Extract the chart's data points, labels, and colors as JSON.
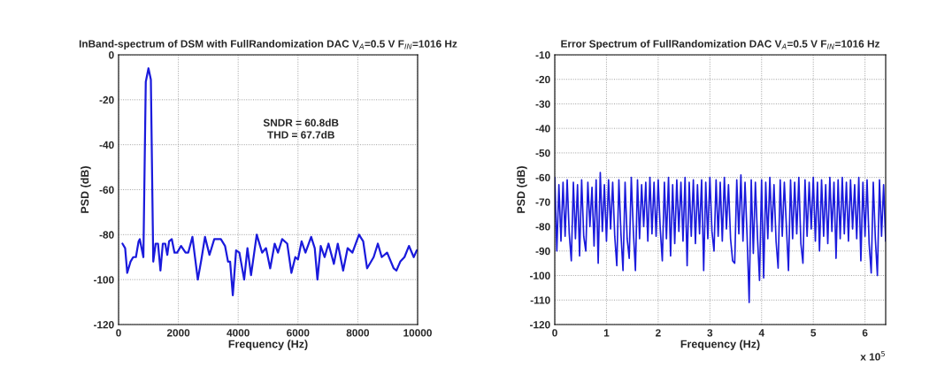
{
  "chart_data": [
    {
      "type": "line",
      "title": "InBand-spectrum of DSM with FullRandomization DAC V$_{A}$=0.5 V F$_{IN}$=1016 Hz",
      "xlabel": "Frequency (Hz)",
      "ylabel": "PSD (dB)",
      "xlim": [
        0,
        10000
      ],
      "xticks": [
        0,
        2000,
        4000,
        6000,
        8000,
        10000
      ],
      "ylim": [
        -120,
        0
      ],
      "yticks": [
        -120,
        -100,
        -80,
        -60,
        -40,
        -20,
        0
      ],
      "grid": true,
      "line_style": "solid",
      "annotations": [
        "SNDR = 60.8dB",
        "THD = 67.7dB"
      ],
      "series": [
        {
          "color": "#1a1adc",
          "x": [
            130,
            220,
            290,
            400,
            490,
            580,
            670,
            710,
            830,
            910,
            1000,
            1080,
            1160,
            1240,
            1320,
            1400,
            1480,
            1560,
            1630,
            1690,
            1780,
            1870,
            1960,
            2090,
            2240,
            2330,
            2470,
            2650,
            2770,
            2890,
            3040,
            3200,
            3420,
            3560,
            3660,
            3730,
            3820,
            3930,
            4040,
            4200,
            4310,
            4430,
            4620,
            4800,
            4930,
            5070,
            5220,
            5330,
            5470,
            5640,
            5780,
            5910,
            6000,
            6120,
            6250,
            6440,
            6560,
            6650,
            6760,
            6890,
            7020,
            7200,
            7330,
            7510,
            7660,
            7820,
            8040,
            8180,
            8310,
            8530,
            8670,
            8800,
            8980,
            9200,
            9290,
            9420,
            9560,
            9710,
            9870,
            9970
          ],
          "values": [
            -84,
            -86,
            -97,
            -92,
            -90,
            -90,
            -83,
            -82,
            -90,
            -12,
            -6,
            -11,
            -92,
            -84,
            -84,
            -96,
            -84,
            -84,
            -89,
            -83,
            -82,
            -88,
            -88,
            -85,
            -88,
            -88,
            -81,
            -100,
            -91,
            -81,
            -89,
            -82,
            -82,
            -85,
            -92,
            -92,
            -107,
            -87,
            -88,
            -100,
            -86,
            -98,
            -80,
            -88,
            -86,
            -95,
            -84,
            -88,
            -82,
            -84,
            -97,
            -90,
            -91,
            -83,
            -88,
            -81,
            -86,
            -100,
            -85,
            -90,
            -84,
            -93,
            -84,
            -96,
            -86,
            -88,
            -80,
            -83,
            -95,
            -90,
            -84,
            -90,
            -88,
            -95,
            -96,
            -92,
            -90,
            -85,
            -90,
            -87
          ]
        }
      ]
    },
    {
      "type": "line",
      "title": "Error Spectrum of FullRandomization DAC V$_{A}$=0.5 V F$_{IN}$=1016 Hz",
      "xlabel": "Frequency (Hz)",
      "ylabel": "PSD (dB)",
      "xlim": [
        0,
        6.4
      ],
      "xticks": [
        0,
        1,
        2,
        3,
        4,
        5,
        6
      ],
      "ylim": [
        -120,
        -10
      ],
      "yticks": [
        -120,
        -110,
        -100,
        -90,
        -80,
        -70,
        -60,
        -50,
        -40,
        -30,
        -20,
        -10
      ],
      "grid": true,
      "line_style": "solid",
      "annotations": [
        "x 10$^{5}$"
      ],
      "series": [
        {
          "color": "#1a1adc",
          "x": [
            0,
            0.04,
            0.08,
            0.12,
            0.16,
            0.2,
            0.24,
            0.28,
            0.32,
            0.36,
            0.4,
            0.44,
            0.48,
            0.52,
            0.56,
            0.6,
            0.64,
            0.68,
            0.72,
            0.76,
            0.8,
            0.84,
            0.88,
            0.92,
            0.96,
            1.0,
            1.04,
            1.08,
            1.12,
            1.16,
            1.2,
            1.24,
            1.28,
            1.32,
            1.36,
            1.4,
            1.44,
            1.48,
            1.52,
            1.56,
            1.6,
            1.64,
            1.68,
            1.72,
            1.76,
            1.8,
            1.84,
            1.88,
            1.92,
            1.96,
            2.0,
            2.04,
            2.08,
            2.12,
            2.16,
            2.2,
            2.24,
            2.28,
            2.32,
            2.36,
            2.4,
            2.44,
            2.48,
            2.52,
            2.56,
            2.6,
            2.64,
            2.68,
            2.72,
            2.76,
            2.8,
            2.84,
            2.88,
            2.92,
            2.96,
            3.0,
            3.04,
            3.08,
            3.12,
            3.16,
            3.2,
            3.24,
            3.28,
            3.32,
            3.36,
            3.4,
            3.44,
            3.48,
            3.52,
            3.56,
            3.6,
            3.64,
            3.68,
            3.72,
            3.76,
            3.8,
            3.84,
            3.88,
            3.92,
            3.96,
            4.0,
            4.04,
            4.08,
            4.12,
            4.16,
            4.2,
            4.24,
            4.28,
            4.32,
            4.36,
            4.4,
            4.44,
            4.48,
            4.52,
            4.56,
            4.6,
            4.64,
            4.68,
            4.72,
            4.76,
            4.8,
            4.84,
            4.88,
            4.92,
            4.96,
            5.0,
            5.04,
            5.08,
            5.12,
            5.16,
            5.2,
            5.24,
            5.28,
            5.32,
            5.36,
            5.4,
            5.44,
            5.48,
            5.52,
            5.56,
            5.6,
            5.64,
            5.68,
            5.72,
            5.76,
            5.8,
            5.84,
            5.88,
            5.92,
            5.96,
            6.0,
            6.04,
            6.08,
            6.12,
            6.16,
            6.2,
            6.24,
            6.28,
            6.32,
            6.36,
            6.4
          ],
          "values": [
            -60,
            -90,
            -63,
            -86,
            -62,
            -84,
            -61,
            -83,
            -94,
            -62,
            -85,
            -63,
            -92,
            -61,
            -84,
            -90,
            -62,
            -80,
            -64,
            -88,
            -61,
            -95,
            -58,
            -82,
            -63,
            -86,
            -61,
            -81,
            -62,
            -84,
            -96,
            -61,
            -83,
            -98,
            -62,
            -85,
            -93,
            -60,
            -82,
            -98,
            -61,
            -85,
            -63,
            -80,
            -62,
            -86,
            -60,
            -83,
            -62,
            -84,
            -61,
            -81,
            -94,
            -62,
            -85,
            -60,
            -92,
            -63,
            -87,
            -61,
            -82,
            -62,
            -86,
            -60,
            -96,
            -62,
            -84,
            -61,
            -87,
            -63,
            -83,
            -61,
            -98,
            -62,
            -85,
            -60,
            -82,
            -90,
            -61,
            -84,
            -62,
            -86,
            -60,
            -81,
            -63,
            -85,
            -94,
            -95,
            -61,
            -83,
            -59,
            -86,
            -62,
            -84,
            -111,
            -61,
            -91,
            -62,
            -84,
            -102,
            -61,
            -101,
            -62,
            -85,
            -60,
            -82,
            -63,
            -86,
            -97,
            -61,
            -84,
            -62,
            -80,
            -98,
            -61,
            -85,
            -62,
            -83,
            -60,
            -87,
            -95,
            -61,
            -84,
            -62,
            -81,
            -60,
            -86,
            -62,
            -90,
            -61,
            -84,
            -63,
            -87,
            -60,
            -82,
            -62,
            -93,
            -61,
            -85,
            -60,
            -83,
            -62,
            -86,
            -61,
            -81,
            -63,
            -85,
            -60,
            -94,
            -62,
            -84,
            -61,
            -87,
            -99,
            -62,
            -85,
            -100,
            -61,
            -84,
            -63,
            -86
          ]
        }
      ]
    }
  ]
}
